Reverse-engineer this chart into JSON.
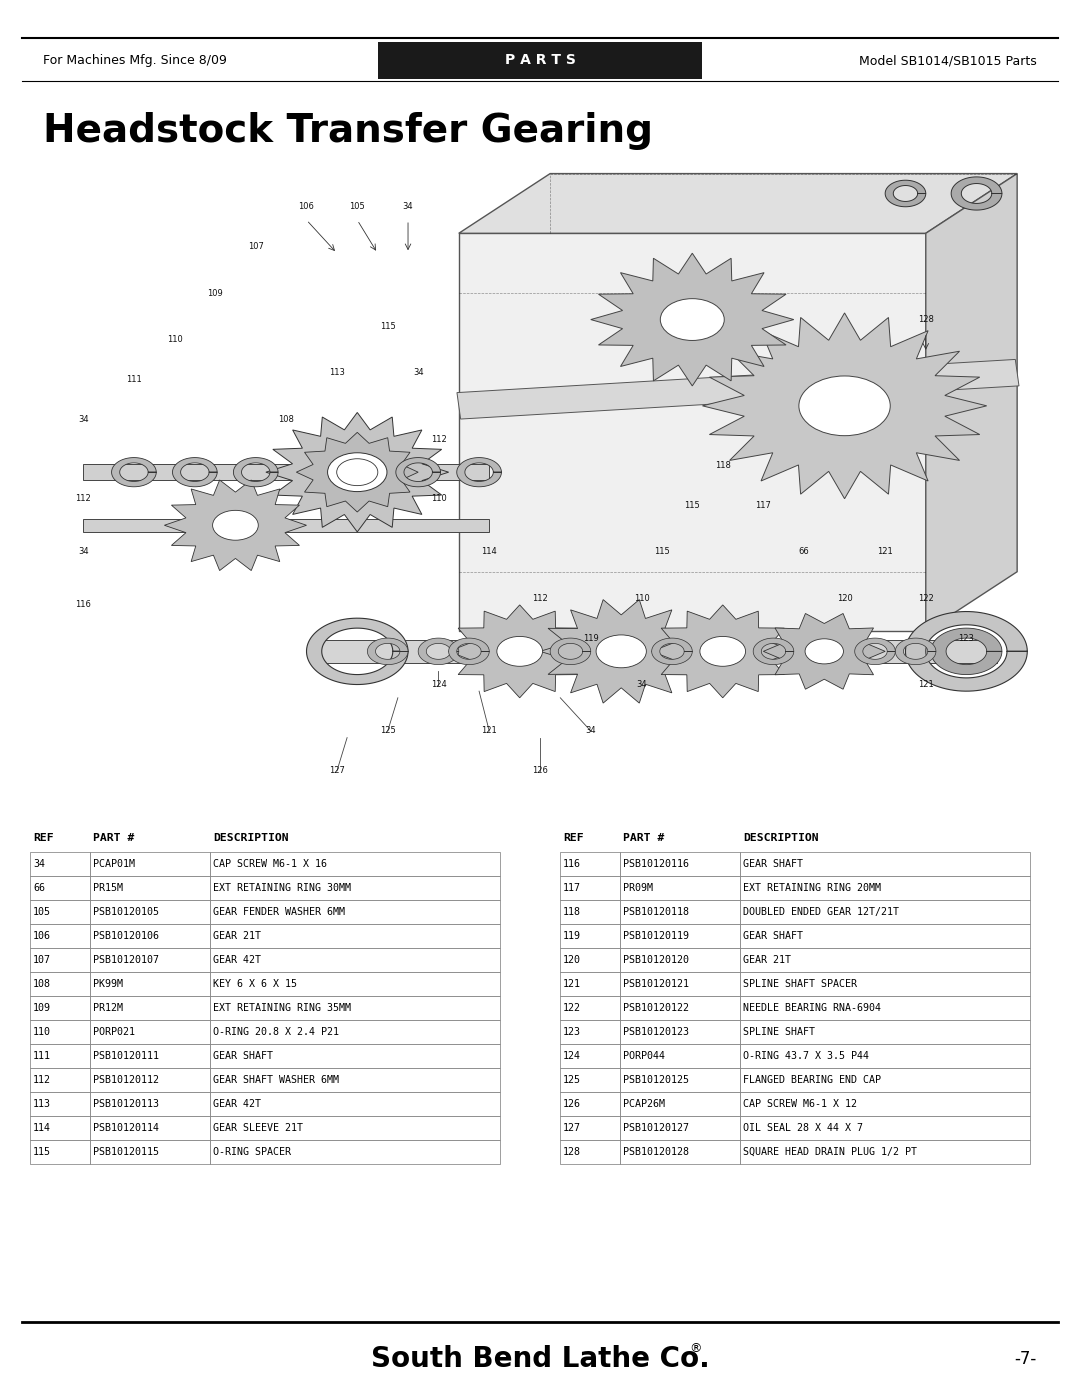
{
  "page_bg": "#ffffff",
  "header_bar_color": "#1a1a1a",
  "header_left_text": "For Machines Mfg. Since 8/09",
  "header_center_text": "P A R T S",
  "header_right_text": "Model SB1014/SB1015 Parts",
  "header_text_color_center": "#ffffff",
  "header_text_color_sides": "#000000",
  "title": "Headstock Transfer Gearing",
  "footer_text": "South Bend Lathe Co.",
  "footer_trademark": "®",
  "footer_page": "-7-",
  "table_left": [
    [
      "34",
      "PCAP01M",
      "CAP SCREW M6-1 X 16"
    ],
    [
      "66",
      "PR15M",
      "EXT RETAINING RING 30MM"
    ],
    [
      "105",
      "PSB10120105",
      "GEAR FENDER WASHER 6MM"
    ],
    [
      "106",
      "PSB10120106",
      "GEAR 21T"
    ],
    [
      "107",
      "PSB10120107",
      "GEAR 42T"
    ],
    [
      "108",
      "PK99M",
      "KEY 6 X 6 X 15"
    ],
    [
      "109",
      "PR12M",
      "EXT RETAINING RING 35MM"
    ],
    [
      "110",
      "PORP021",
      "O-RING 20.8 X 2.4 P21"
    ],
    [
      "111",
      "PSB10120111",
      "GEAR SHAFT"
    ],
    [
      "112",
      "PSB10120112",
      "GEAR SHAFT WASHER 6MM"
    ],
    [
      "113",
      "PSB10120113",
      "GEAR 42T"
    ],
    [
      "114",
      "PSB10120114",
      "GEAR SLEEVE 21T"
    ],
    [
      "115",
      "PSB10120115",
      "O-RING SPACER"
    ]
  ],
  "table_right": [
    [
      "116",
      "PSB10120116",
      "GEAR SHAFT"
    ],
    [
      "117",
      "PR09M",
      "EXT RETAINING RING 20MM"
    ],
    [
      "118",
      "PSB10120118",
      "DOUBLED ENDED GEAR 12T/21T"
    ],
    [
      "119",
      "PSB10120119",
      "GEAR SHAFT"
    ],
    [
      "120",
      "PSB10120120",
      "GEAR 21T"
    ],
    [
      "121",
      "PSB10120121",
      "SPLINE SHAFT SPACER"
    ],
    [
      "122",
      "PSB10120122",
      "NEEDLE BEARING RNA-6904"
    ],
    [
      "123",
      "PSB10120123",
      "SPLINE SHAFT"
    ],
    [
      "124",
      "PORP044",
      "O-RING 43.7 X 3.5 P44"
    ],
    [
      "125",
      "PSB10120125",
      "FLANGED BEARING END CAP"
    ],
    [
      "126",
      "PCAP26M",
      "CAP SCREW M6-1 X 12"
    ],
    [
      "127",
      "PSB10120127",
      "OIL SEAL 28 X 44 X 7"
    ],
    [
      "128",
      "PSB10120128",
      "SQUARE HEAD DRAIN PLUG 1/2 PT"
    ]
  ],
  "table_font_size": 7.2,
  "header_font_size": 9,
  "title_font_size": 28,
  "footer_font_size": 20
}
